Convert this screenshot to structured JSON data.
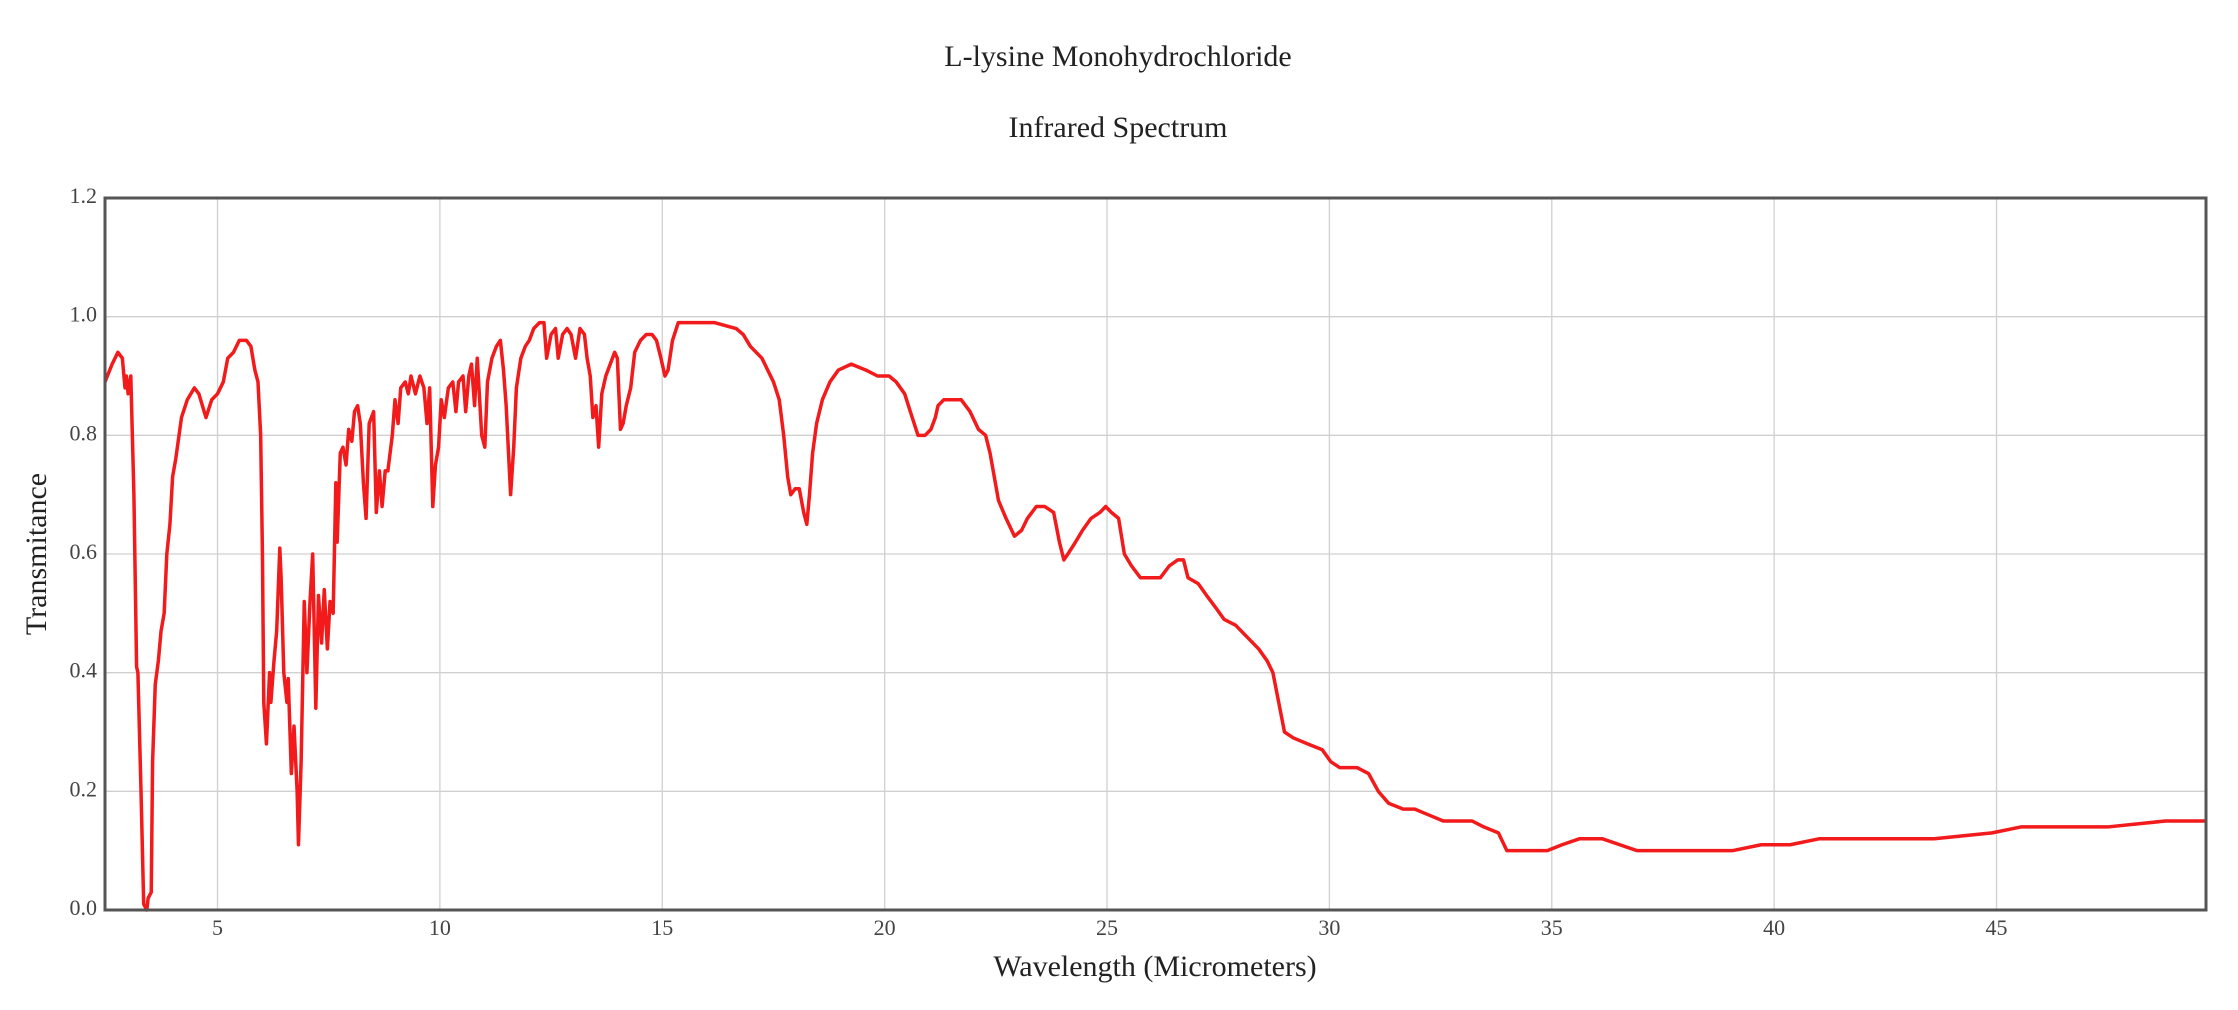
{
  "chart_data": {
    "type": "line",
    "title": "L-lysine Monohydrochloride",
    "subtitle": "Infrared Spectrum",
    "x_label": "Wavelength (Micrometers)",
    "y_label": "Transmitance",
    "color": "#f21a1a",
    "grid": true,
    "xlim": [
      2.47,
      49.71
    ],
    "ylim": [
      0,
      1.2
    ],
    "xticks": [
      5,
      10,
      15,
      20,
      25,
      30,
      35,
      40,
      45
    ],
    "yticks": [
      {
        "value": 0,
        "label": "0.0"
      },
      0.2,
      0.4,
      0.6,
      0.8,
      {
        "value": 1,
        "label": "1.0"
      },
      1.2
    ],
    "x": [
      2.47,
      2.63,
      2.76,
      2.86,
      2.92,
      2.95,
      2.99,
      3.05,
      3.12,
      3.18,
      3.21,
      3.28,
      3.34,
      3.41,
      3.44,
      3.51,
      3.54,
      3.6,
      3.67,
      3.73,
      3.8,
      3.86,
      3.93,
      3.99,
      4.06,
      4.19,
      4.32,
      4.48,
      4.58,
      4.74,
      4.87,
      5.0,
      5.13,
      5.23,
      5.36,
      5.49,
      5.65,
      5.75,
      5.84,
      5.91,
      5.97,
      6.01,
      6.04,
      6.1,
      6.17,
      6.2,
      6.27,
      6.33,
      6.4,
      6.43,
      6.49,
      6.56,
      6.59,
      6.66,
      6.72,
      6.79,
      6.82,
      6.88,
      6.95,
      7.01,
      7.08,
      7.14,
      7.21,
      7.27,
      7.34,
      7.4,
      7.47,
      7.53,
      7.6,
      7.66,
      7.69,
      7.76,
      7.82,
      7.89,
      7.95,
      8.02,
      8.08,
      8.15,
      8.21,
      8.28,
      8.34,
      8.41,
      8.51,
      8.57,
      8.64,
      8.7,
      8.77,
      8.83,
      8.93,
      8.99,
      9.06,
      9.12,
      9.22,
      9.29,
      9.35,
      9.45,
      9.55,
      9.64,
      9.71,
      9.77,
      9.84,
      9.9,
      9.97,
      10.03,
      10.1,
      10.19,
      10.29,
      10.36,
      10.42,
      10.52,
      10.58,
      10.65,
      10.71,
      10.78,
      10.84,
      10.94,
      11.01,
      11.07,
      11.17,
      11.27,
      11.36,
      11.43,
      11.49,
      11.59,
      11.66,
      11.72,
      11.82,
      11.92,
      12.01,
      12.11,
      12.24,
      12.34,
      12.4,
      12.5,
      12.6,
      12.66,
      12.76,
      12.86,
      12.95,
      13.05,
      13.15,
      13.25,
      13.31,
      13.38,
      13.44,
      13.51,
      13.57,
      13.64,
      13.73,
      13.83,
      13.93,
      13.99,
      14.06,
      14.12,
      14.19,
      14.29,
      14.38,
      14.51,
      14.64,
      14.77,
      14.87,
      14.97,
      15.06,
      15.13,
      15.23,
      15.36,
      15.68,
      16.17,
      16.66,
      16.82,
      16.98,
      17.24,
      17.5,
      17.63,
      17.73,
      17.82,
      17.89,
      17.99,
      18.08,
      18.18,
      18.25,
      18.31,
      18.38,
      18.47,
      18.6,
      18.77,
      18.96,
      19.25,
      19.58,
      19.84,
      20.1,
      20.26,
      20.45,
      20.62,
      20.75,
      20.91,
      21.04,
      21.14,
      21.2,
      21.33,
      21.53,
      21.72,
      21.92,
      22.11,
      22.27,
      22.37,
      22.56,
      22.73,
      22.92,
      23.08,
      23.21,
      23.41,
      23.6,
      23.8,
      23.93,
      24.03,
      24.12,
      24.29,
      24.45,
      24.64,
      24.84,
      24.97,
      25.1,
      25.26,
      25.39,
      25.55,
      25.75,
      26.01,
      26.2,
      26.4,
      26.59,
      26.72,
      26.82,
      27.05,
      27.24,
      27.44,
      27.63,
      27.89,
      28.15,
      28.41,
      28.6,
      28.73,
      28.86,
      28.99,
      29.19,
      29.51,
      29.84,
      30.03,
      30.23,
      30.62,
      30.88,
      31.1,
      31.33,
      31.66,
      31.92,
      32.24,
      32.56,
      32.89,
      33.21,
      33.47,
      33.8,
      33.99,
      34.19,
      34.51,
      34.9,
      35.23,
      35.62,
      36.14,
      36.53,
      36.92,
      37.31,
      37.64,
      38.08,
      38.41,
      39.06,
      39.71,
      40.36,
      41.01,
      42.31,
      43.6,
      44.9,
      45.55,
      46.2,
      47.5,
      48.8,
      49.71
    ],
    "values": [
      0.89,
      0.92,
      0.94,
      0.93,
      0.88,
      0.9,
      0.87,
      0.9,
      0.7,
      0.41,
      0.4,
      0.2,
      0.01,
      0.0,
      0.02,
      0.03,
      0.25,
      0.38,
      0.42,
      0.47,
      0.5,
      0.6,
      0.65,
      0.73,
      0.76,
      0.83,
      0.86,
      0.88,
      0.87,
      0.83,
      0.86,
      0.87,
      0.89,
      0.93,
      0.94,
      0.96,
      0.96,
      0.95,
      0.91,
      0.89,
      0.8,
      0.6,
      0.35,
      0.28,
      0.4,
      0.35,
      0.42,
      0.47,
      0.61,
      0.56,
      0.4,
      0.35,
      0.39,
      0.23,
      0.31,
      0.2,
      0.11,
      0.25,
      0.52,
      0.4,
      0.52,
      0.6,
      0.34,
      0.53,
      0.45,
      0.54,
      0.44,
      0.52,
      0.5,
      0.72,
      0.62,
      0.77,
      0.78,
      0.75,
      0.81,
      0.79,
      0.84,
      0.85,
      0.82,
      0.72,
      0.66,
      0.82,
      0.84,
      0.67,
      0.74,
      0.68,
      0.74,
      0.74,
      0.8,
      0.86,
      0.82,
      0.88,
      0.89,
      0.87,
      0.9,
      0.87,
      0.9,
      0.88,
      0.82,
      0.88,
      0.68,
      0.75,
      0.78,
      0.86,
      0.83,
      0.88,
      0.89,
      0.84,
      0.89,
      0.9,
      0.84,
      0.9,
      0.92,
      0.85,
      0.93,
      0.8,
      0.78,
      0.89,
      0.93,
      0.95,
      0.96,
      0.91,
      0.85,
      0.7,
      0.78,
      0.88,
      0.93,
      0.95,
      0.96,
      0.98,
      0.99,
      0.99,
      0.93,
      0.97,
      0.98,
      0.93,
      0.97,
      0.98,
      0.97,
      0.93,
      0.98,
      0.97,
      0.93,
      0.9,
      0.83,
      0.85,
      0.78,
      0.87,
      0.9,
      0.92,
      0.94,
      0.93,
      0.81,
      0.82,
      0.85,
      0.88,
      0.94,
      0.96,
      0.97,
      0.97,
      0.96,
      0.93,
      0.9,
      0.91,
      0.96,
      0.99,
      0.99,
      0.99,
      0.98,
      0.97,
      0.95,
      0.93,
      0.89,
      0.86,
      0.8,
      0.73,
      0.7,
      0.71,
      0.71,
      0.67,
      0.65,
      0.7,
      0.77,
      0.82,
      0.86,
      0.89,
      0.91,
      0.92,
      0.91,
      0.9,
      0.9,
      0.89,
      0.87,
      0.83,
      0.8,
      0.8,
      0.81,
      0.83,
      0.85,
      0.86,
      0.86,
      0.86,
      0.84,
      0.81,
      0.8,
      0.77,
      0.69,
      0.66,
      0.63,
      0.64,
      0.66,
      0.68,
      0.68,
      0.67,
      0.62,
      0.59,
      0.6,
      0.62,
      0.64,
      0.66,
      0.67,
      0.68,
      0.67,
      0.66,
      0.6,
      0.58,
      0.56,
      0.56,
      0.56,
      0.58,
      0.59,
      0.59,
      0.56,
      0.55,
      0.53,
      0.51,
      0.49,
      0.48,
      0.46,
      0.44,
      0.42,
      0.4,
      0.35,
      0.3,
      0.29,
      0.28,
      0.27,
      0.25,
      0.24,
      0.24,
      0.23,
      0.2,
      0.18,
      0.17,
      0.17,
      0.16,
      0.15,
      0.15,
      0.15,
      0.14,
      0.13,
      0.1,
      0.1,
      0.1,
      0.1,
      0.11,
      0.12,
      0.12,
      0.11,
      0.1,
      0.1,
      0.1,
      0.1,
      0.1,
      0.1,
      0.11,
      0.11,
      0.12,
      0.12,
      0.12,
      0.13,
      0.14,
      0.14,
      0.14,
      0.15,
      0.15
    ]
  }
}
